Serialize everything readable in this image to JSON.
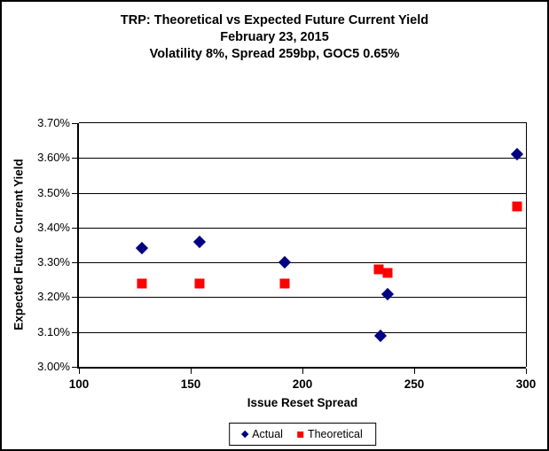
{
  "title": {
    "line1": "TRP: Theoretical vs Expected Future Current Yield",
    "line2": "February 23, 2015",
    "line3": "Volatility 8%, Spread 259bp, GOC5 0.65%"
  },
  "colors": {
    "actual": "#000080",
    "theoretical": "#FF0000",
    "axis": "#000000",
    "background": "#FFFFFF"
  },
  "chart_data": {
    "type": "scatter",
    "title": "TRP: Theoretical vs Expected Future Current Yield",
    "subtitle": "February 23, 2015",
    "subtitle2": "Volatility 8%, Spread 259bp, GOC5 0.65%",
    "xlabel": "Issue Reset Spread",
    "ylabel": "Expected Future Current Yield",
    "xlim": [
      100,
      300
    ],
    "ylim": [
      3.0,
      3.7
    ],
    "x_ticks": [
      100,
      150,
      200,
      250,
      300
    ],
    "x_tick_labels": [
      "100",
      "150",
      "200",
      "250",
      "300"
    ],
    "y_ticks": [
      3.0,
      3.1,
      3.2,
      3.3,
      3.4,
      3.5,
      3.6,
      3.7
    ],
    "y_tick_labels": [
      "3.00%",
      "3.10%",
      "3.20%",
      "3.30%",
      "3.40%",
      "3.50%",
      "3.60%",
      "3.70%"
    ],
    "grid": "horizontal",
    "legend_position": "bottom",
    "series": [
      {
        "name": "Actual",
        "marker": "diamond",
        "color": "#000080",
        "points": [
          [
            128,
            3.34
          ],
          [
            154,
            3.36
          ],
          [
            192,
            3.3
          ],
          [
            235,
            3.09
          ],
          [
            238,
            3.21
          ],
          [
            296,
            3.61
          ]
        ]
      },
      {
        "name": "Theoretical",
        "marker": "square",
        "color": "#FF0000",
        "points": [
          [
            128,
            3.24
          ],
          [
            154,
            3.24
          ],
          [
            192,
            3.24
          ],
          [
            234,
            3.28
          ],
          [
            238,
            3.27
          ],
          [
            296,
            3.46
          ]
        ]
      }
    ]
  },
  "legend": {
    "actual_label": "Actual",
    "theoretical_label": "Theoretical"
  }
}
